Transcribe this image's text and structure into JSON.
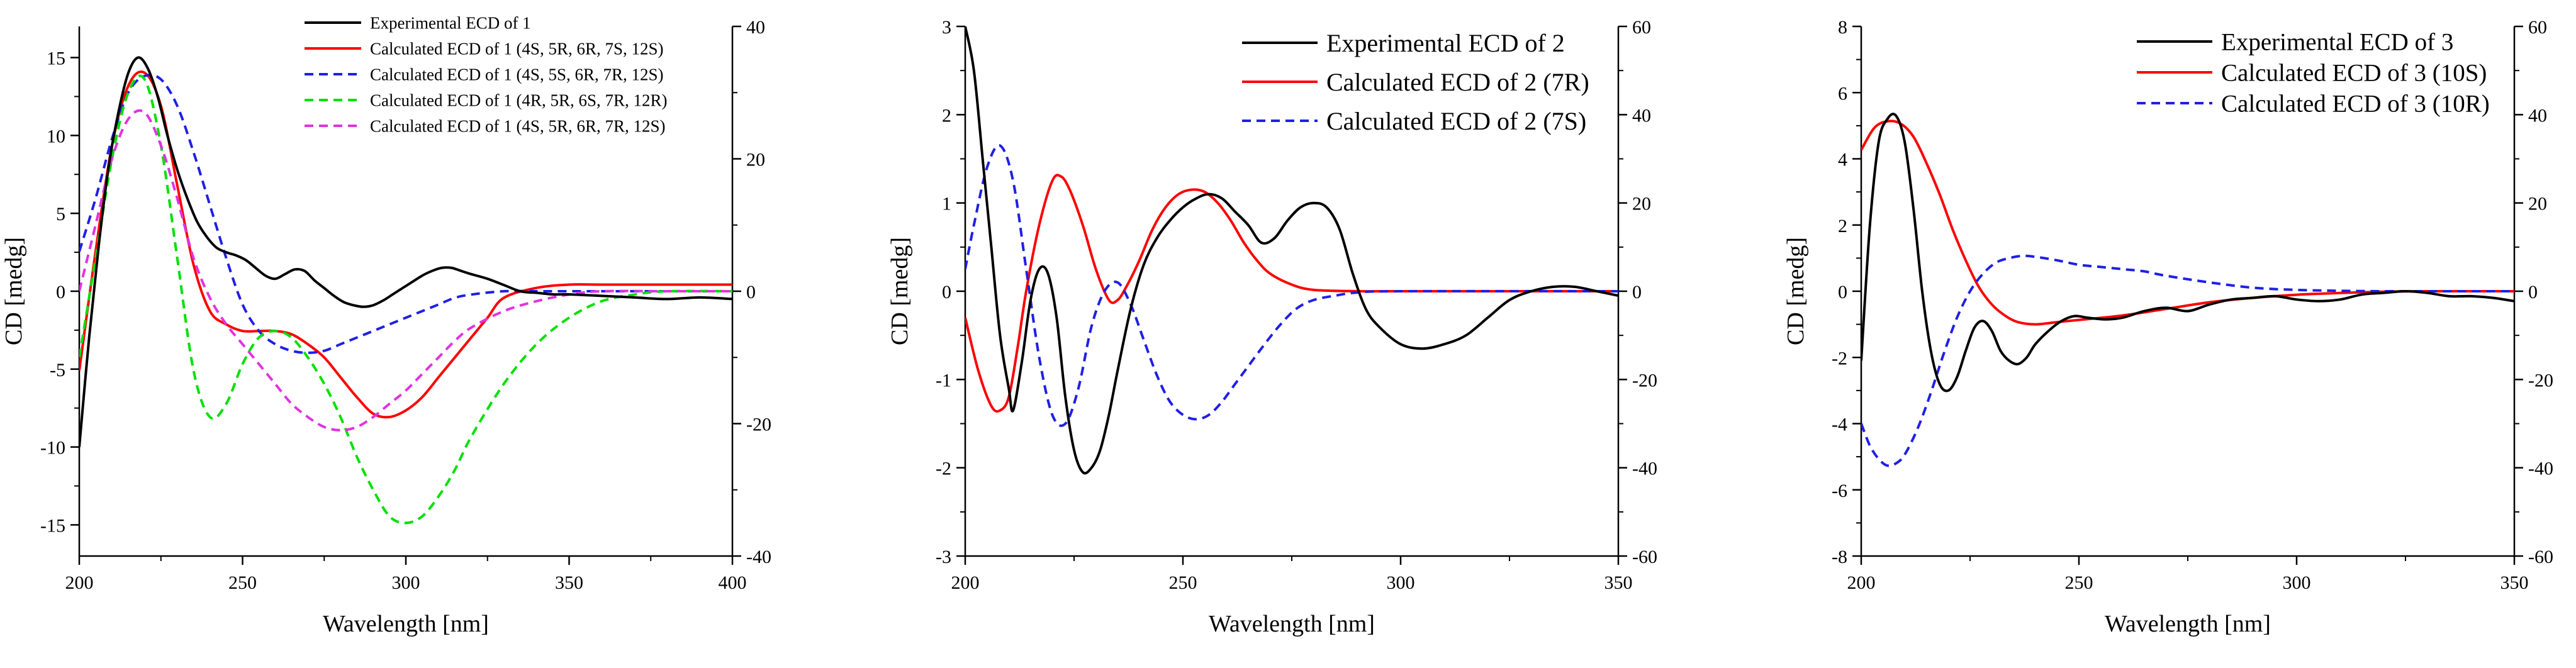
{
  "chart_data": [
    {
      "type": "line",
      "id": "panel1",
      "title": "",
      "xlabel": "Wavelength [nm]",
      "ylabel": "CD [medg]",
      "xlim": [
        200,
        400
      ],
      "ylim_left": [
        -17,
        17
      ],
      "ylim_right": [
        -40,
        40
      ],
      "x_ticks": [
        "200",
        "250",
        "300",
        "350",
        "400"
      ],
      "y_ticks_left": [
        "15",
        "10",
        "5",
        "0",
        "-5",
        "-10",
        "-15"
      ],
      "y_ticks_right": [
        "40",
        "20",
        "0",
        "-20",
        "-40"
      ],
      "legend_position": "top-right",
      "series": [
        {
          "name": "Experimental ECD of 1",
          "legend_label": "Experimental ECD of 1",
          "axis": "left",
          "color": "#000000",
          "dash": "solid",
          "x": [
            200,
            203,
            206,
            209,
            212,
            215,
            218,
            221,
            224,
            227,
            230,
            233,
            236,
            239,
            242,
            245,
            248,
            251,
            254,
            257,
            260,
            263,
            266,
            269,
            272,
            275,
            278,
            281,
            284,
            287,
            290,
            293,
            296,
            299,
            302,
            305,
            308,
            311,
            314,
            317,
            320,
            325,
            330,
            335,
            340,
            345,
            350,
            360,
            370,
            380,
            390,
            400
          ],
          "y": [
            -10,
            -3,
            3,
            8,
            11.5,
            14,
            15,
            14.3,
            12.5,
            10,
            7.8,
            6,
            4.5,
            3.5,
            2.8,
            2.5,
            2.3,
            2,
            1.5,
            1,
            0.8,
            1.1,
            1.4,
            1.3,
            0.7,
            0.2,
            -0.3,
            -0.7,
            -0.9,
            -1,
            -0.9,
            -0.6,
            -0.2,
            0.2,
            0.6,
            1,
            1.3,
            1.5,
            1.5,
            1.3,
            1.1,
            0.8,
            0.4,
            0,
            -0.1,
            -0.2,
            -0.2,
            -0.3,
            -0.4,
            -0.5,
            -0.4,
            -0.5
          ]
        },
        {
          "name": "Calculated ECD of 1 (4S, 5R, 6R, 7S, 12S)",
          "legend_label": "Calculated ECD of 1 (4S, 5R, 6R, 7S, 12S)",
          "axis": "right",
          "color": "#ff0000",
          "dash": "solid",
          "x": [
            200,
            205,
            210,
            215,
            220,
            225,
            230,
            235,
            240,
            245,
            250,
            255,
            260,
            265,
            270,
            275,
            280,
            285,
            290,
            295,
            300,
            305,
            310,
            315,
            320,
            325,
            330,
            340,
            350,
            360,
            380,
            400
          ],
          "y": [
            -12,
            6,
            22,
            31,
            33,
            28,
            16,
            4,
            -3,
            -5,
            -6,
            -6,
            -6,
            -6.5,
            -8,
            -10,
            -13,
            -16,
            -18.5,
            -19,
            -18,
            -16,
            -13,
            -10,
            -7,
            -4,
            -1,
            0.5,
            1,
            1,
            1,
            1
          ]
        },
        {
          "name": "Calculated ECD of 1 (4S, 5S, 6R, 7R, 12S)",
          "legend_label": "Calculated ECD of 1 (4S, 5S, 6R, 7R, 12S)",
          "axis": "right",
          "color": "#1f1fe6",
          "dash": "dashed",
          "x": [
            200,
            205,
            210,
            215,
            220,
            225,
            230,
            235,
            240,
            245,
            250,
            255,
            260,
            265,
            270,
            275,
            280,
            285,
            290,
            295,
            300,
            305,
            310,
            315,
            320,
            330,
            340,
            350,
            360,
            380,
            400
          ],
          "y": [
            6,
            14,
            23,
            30,
            32.5,
            32,
            28,
            21,
            13,
            5,
            -2,
            -6,
            -8,
            -9,
            -9.3,
            -9,
            -8,
            -7,
            -6,
            -5,
            -4,
            -3,
            -2,
            -1,
            -0.5,
            0,
            0,
            0,
            0,
            0,
            0
          ]
        },
        {
          "name": "Calculated ECD of 1 (4R, 5R, 6S, 7R, 12R)",
          "legend_label": "Calculated ECD of 1 (4R, 5R, 6S, 7R, 12R)",
          "axis": "right",
          "color": "#00e000",
          "dash": "dashed",
          "x": [
            200,
            205,
            210,
            215,
            220,
            225,
            230,
            235,
            240,
            245,
            250,
            255,
            260,
            265,
            270,
            275,
            280,
            285,
            290,
            295,
            300,
            305,
            310,
            315,
            320,
            330,
            340,
            350,
            360,
            370,
            380,
            400
          ],
          "y": [
            -10,
            5,
            20,
            30,
            32,
            22,
            5,
            -12,
            -19,
            -17,
            -11,
            -7,
            -6,
            -7,
            -10,
            -14,
            -19,
            -25,
            -30,
            -34,
            -35,
            -34,
            -31,
            -27,
            -22,
            -14,
            -8,
            -4,
            -1.5,
            -0.5,
            0,
            0
          ]
        },
        {
          "name": "Calculated ECD of 1 (4S, 5R, 6R, 7R, 12S)",
          "legend_label": "Calculated ECD of 1 (4S, 5R, 6R, 7R, 12S)",
          "axis": "right",
          "color": "#e033e0",
          "dash": "dashed",
          "x": [
            200,
            205,
            210,
            215,
            220,
            225,
            230,
            235,
            240,
            245,
            250,
            255,
            260,
            265,
            270,
            275,
            280,
            285,
            290,
            295,
            300,
            305,
            310,
            315,
            320,
            330,
            340,
            350,
            360,
            380,
            400
          ],
          "y": [
            0,
            10,
            20,
            26,
            27,
            22,
            14,
            5,
            -1,
            -5,
            -8,
            -11,
            -14,
            -17,
            -19,
            -20.5,
            -21,
            -20.5,
            -19,
            -17,
            -15,
            -12.5,
            -10,
            -7.5,
            -5.5,
            -3,
            -1.5,
            -0.5,
            0,
            0,
            0
          ]
        }
      ]
    },
    {
      "type": "line",
      "id": "panel2",
      "title": "",
      "xlabel": "Wavelength [nm]",
      "ylabel": "CD [medg]",
      "xlim": [
        200,
        350
      ],
      "ylim_left": [
        -3,
        3
      ],
      "ylim_right": [
        -60,
        60
      ],
      "x_ticks": [
        "200",
        "250",
        "300",
        "350"
      ],
      "y_ticks_left": [
        "3",
        "2",
        "1",
        "0",
        "-1",
        "-2",
        "-3"
      ],
      "y_ticks_right": [
        "60",
        "40",
        "20",
        "0",
        "-20",
        "-40",
        "-60"
      ],
      "legend_position": "top-right",
      "series": [
        {
          "name": "Experimental ECD of 2",
          "legend_label": "Experimental ECD of 2",
          "axis": "left",
          "color": "#000000",
          "dash": "solid",
          "x": [
            200,
            202,
            204,
            206,
            208,
            210,
            211,
            213,
            215,
            217,
            219,
            221,
            223,
            225,
            227,
            229,
            231,
            233,
            235,
            238,
            241,
            244,
            247,
            250,
            253,
            256,
            259,
            262,
            265,
            268,
            271,
            274,
            277,
            280,
            283,
            286,
            289,
            292,
            295,
            300,
            305,
            310,
            315,
            320,
            325,
            330,
            335,
            340,
            345,
            350
          ],
          "y": [
            3,
            2.5,
            1.5,
            0.5,
            -0.5,
            -1.1,
            -1.35,
            -0.8,
            -0.1,
            0.25,
            0.2,
            -0.3,
            -1.2,
            -1.8,
            -2.05,
            -2,
            -1.8,
            -1.4,
            -0.9,
            -0.2,
            0.3,
            0.6,
            0.8,
            0.95,
            1.05,
            1.1,
            1.05,
            0.9,
            0.75,
            0.55,
            0.6,
            0.8,
            0.95,
            1.0,
            0.95,
            0.7,
            0.2,
            -0.2,
            -0.4,
            -0.6,
            -0.65,
            -0.6,
            -0.5,
            -0.3,
            -0.1,
            0,
            0.05,
            0.05,
            0,
            -0.05
          ]
        },
        {
          "name": "Calculated ECD of 2 (7R)",
          "legend_label": "Calculated ECD of 2 (7R)",
          "axis": "right",
          "color": "#ff0000",
          "dash": "solid",
          "x": [
            200,
            203,
            206,
            208,
            210,
            212,
            214,
            217,
            220,
            222,
            224,
            227,
            230,
            233,
            235,
            237,
            240,
            243,
            246,
            249,
            252,
            255,
            258,
            261,
            264,
            267,
            270,
            275,
            280,
            290,
            300,
            350
          ],
          "y": [
            -6,
            -18,
            -26,
            -27,
            -24,
            -13,
            0,
            15,
            25,
            26,
            23,
            15,
            5,
            -2,
            -2,
            1,
            7,
            14,
            19,
            22,
            23,
            22.5,
            20,
            16,
            11,
            7,
            4,
            1.5,
            0.3,
            0,
            0,
            0
          ]
        },
        {
          "name": "Calculated ECD of 2 (7S)",
          "legend_label": "Calculated ECD of 2 (7S)",
          "axis": "right",
          "color": "#1f1fe6",
          "dash": "dashed",
          "x": [
            200,
            202,
            205,
            208,
            211,
            214,
            217,
            220,
            223,
            226,
            229,
            232,
            235,
            238,
            241,
            244,
            247,
            250,
            253,
            256,
            259,
            262,
            265,
            268,
            272,
            276,
            280,
            285,
            290,
            300,
            350
          ],
          "y": [
            5,
            15,
            28,
            33,
            25,
            5,
            -15,
            -28,
            -30,
            -22,
            -8,
            0,
            2,
            -3,
            -11,
            -19,
            -25,
            -28,
            -29,
            -28,
            -25,
            -21,
            -17,
            -13,
            -8,
            -4,
            -2,
            -1,
            -0.3,
            0,
            0
          ]
        }
      ]
    },
    {
      "type": "line",
      "id": "panel3",
      "title": "",
      "xlabel": "Wavelength [nm]",
      "ylabel": "CD [medg]",
      "xlim": [
        200,
        350
      ],
      "ylim_left": [
        -8,
        8
      ],
      "ylim_right": [
        -60,
        60
      ],
      "x_ticks": [
        "200",
        "250",
        "300",
        "350"
      ],
      "y_ticks_left": [
        "8",
        "6",
        "4",
        "2",
        "0",
        "-2",
        "-4",
        "-6",
        "-8"
      ],
      "y_ticks_right": [
        "60",
        "40",
        "20",
        "0",
        "-20",
        "-40",
        "-60"
      ],
      "legend_position": "top-right",
      "series": [
        {
          "name": "Experimental ECD of 3",
          "legend_label": "Experimental ECD of 3",
          "axis": "left",
          "color": "#000000",
          "dash": "solid",
          "x": [
            200,
            202,
            204,
            206,
            208,
            210,
            212,
            214,
            216,
            218,
            220,
            222,
            224,
            226,
            228,
            230,
            232,
            234,
            236,
            238,
            240,
            243,
            246,
            249,
            252,
            256,
            260,
            265,
            270,
            275,
            280,
            285,
            290,
            295,
            300,
            305,
            310,
            315,
            320,
            325,
            330,
            335,
            340,
            345,
            350
          ],
          "y": [
            -2.1,
            2,
            4.5,
            5.2,
            5.3,
            4.5,
            2.5,
            0,
            -1.8,
            -2.8,
            -3,
            -2.6,
            -1.8,
            -1.1,
            -0.9,
            -1.2,
            -1.8,
            -2.1,
            -2.2,
            -2,
            -1.6,
            -1.2,
            -0.9,
            -0.75,
            -0.8,
            -0.85,
            -0.8,
            -0.6,
            -0.5,
            -0.6,
            -0.4,
            -0.25,
            -0.2,
            -0.15,
            -0.25,
            -0.3,
            -0.25,
            -0.1,
            -0.05,
            0,
            -0.05,
            -0.15,
            -0.15,
            -0.2,
            -0.3
          ]
        },
        {
          "name": "Calculated ECD of 3 (10S)",
          "legend_label": "Calculated ECD of 3 (10S)",
          "axis": "right",
          "color": "#ff0000",
          "dash": "solid",
          "x": [
            200,
            203,
            206,
            209,
            212,
            215,
            218,
            221,
            224,
            227,
            230,
            233,
            236,
            240,
            245,
            250,
            260,
            270,
            280,
            290,
            300,
            310,
            320,
            330,
            340,
            350
          ],
          "y": [
            32,
            37,
            38.5,
            38,
            35,
            29,
            22,
            14,
            7,
            1,
            -3,
            -5.5,
            -7,
            -7.5,
            -7,
            -6.5,
            -5.5,
            -4,
            -2.5,
            -1.5,
            -0.8,
            -0.4,
            -0.1,
            0,
            0,
            0
          ]
        },
        {
          "name": "Calculated ECD of 3 (10R)",
          "legend_label": "Calculated ECD of 3 (10R)",
          "axis": "right",
          "color": "#1f1fe6",
          "dash": "dashed",
          "x": [
            200,
            202,
            204,
            206,
            208,
            210,
            213,
            216,
            219,
            222,
            225,
            228,
            231,
            234,
            237,
            240,
            245,
            250,
            255,
            260,
            265,
            270,
            280,
            290,
            300,
            310,
            320,
            330,
            340,
            350
          ],
          "y": [
            -30,
            -35,
            -38,
            -39.5,
            -39,
            -37,
            -31,
            -23,
            -14,
            -6,
            0,
            4,
            6.5,
            7.5,
            8,
            7.8,
            7,
            6,
            5.5,
            5,
            4.5,
            3.5,
            2,
            0.8,
            0.3,
            0.1,
            0,
            0,
            0,
            0
          ]
        }
      ]
    }
  ]
}
